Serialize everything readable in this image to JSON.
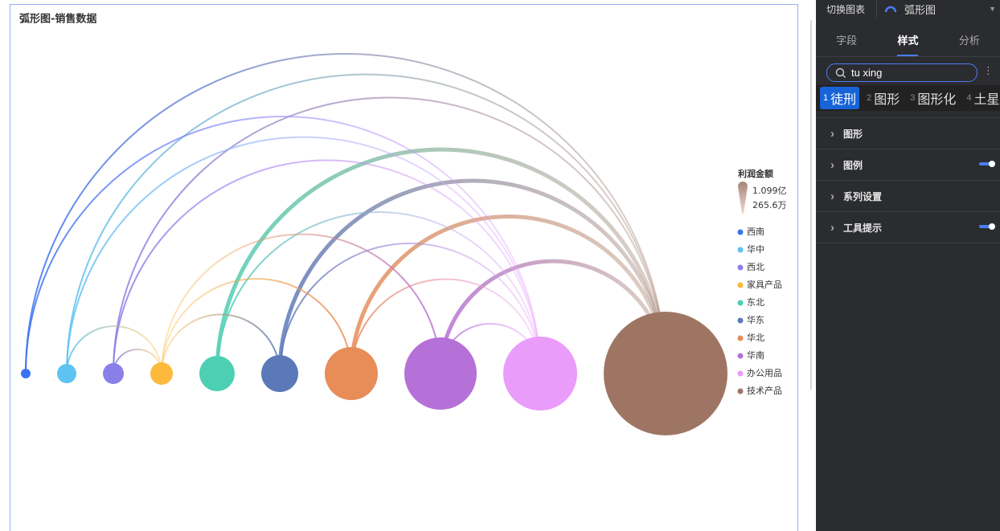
{
  "chart": {
    "title": "弧形图-销售数据",
    "size_legend": {
      "title": "利润金额",
      "max": {
        "value": 10990,
        "label": "1.099亿"
      },
      "min": {
        "value": 265.6,
        "label": "265.6万"
      }
    },
    "nodes": [
      {
        "name": "西南",
        "color": "#3b72f0",
        "value": 265.6
      },
      {
        "name": "华中",
        "color": "#5cc3f2",
        "value": 1172
      },
      {
        "name": "西北",
        "color": "#8a7fe8",
        "value": 1323
      },
      {
        "name": "家具产品",
        "color": "#fdb93c",
        "value": 1474
      },
      {
        "name": "东北",
        "color": "#4ccfb2",
        "value": 2682
      },
      {
        "name": "华东",
        "color": "#5b79b8",
        "value": 2833
      },
      {
        "name": "华北",
        "color": "#e88c58",
        "value": 4344
      },
      {
        "name": "华南",
        "color": "#b571d8",
        "value": 6157
      },
      {
        "name": "办公用品",
        "color": "#ea9cfb",
        "value": 6307
      },
      {
        "name": "技术产品",
        "color": "#9e7563",
        "value": 10990
      }
    ],
    "links": [
      {
        "source": "西南",
        "target": "技术产品"
      },
      {
        "source": "华中",
        "target": "技术产品"
      },
      {
        "source": "西北",
        "target": "技术产品"
      },
      {
        "source": "东北",
        "target": "技术产品"
      },
      {
        "source": "华东",
        "target": "技术产品"
      },
      {
        "source": "华北",
        "target": "技术产品"
      },
      {
        "source": "华南",
        "target": "技术产品"
      },
      {
        "source": "西南",
        "target": "办公用品"
      },
      {
        "source": "华中",
        "target": "办公用品"
      },
      {
        "source": "西北",
        "target": "办公用品"
      },
      {
        "source": "东北",
        "target": "办公用品"
      },
      {
        "source": "华东",
        "target": "办公用品"
      },
      {
        "source": "华北",
        "target": "办公用品"
      },
      {
        "source": "华南",
        "target": "办公用品"
      },
      {
        "source": "华中",
        "target": "家具产品"
      },
      {
        "source": "西北",
        "target": "家具产品"
      },
      {
        "source": "华东",
        "target": "家具产品"
      },
      {
        "source": "华北",
        "target": "家具产品"
      },
      {
        "source": "华南",
        "target": "家具产品"
      }
    ]
  },
  "panel": {
    "switch_label": "切换图表",
    "chart_type": "弧形图",
    "tabs": [
      "字段",
      "样式",
      "分析"
    ],
    "search": "tu xing",
    "candidates": [
      {
        "index": "1",
        "text": "徒刑"
      },
      {
        "index": "2",
        "text": "图形"
      },
      {
        "index": "3",
        "text": "图形化"
      },
      {
        "index": "4",
        "text": "土星"
      }
    ],
    "sections": [
      "图形",
      "图例",
      "系列设置",
      "工具提示"
    ]
  }
}
